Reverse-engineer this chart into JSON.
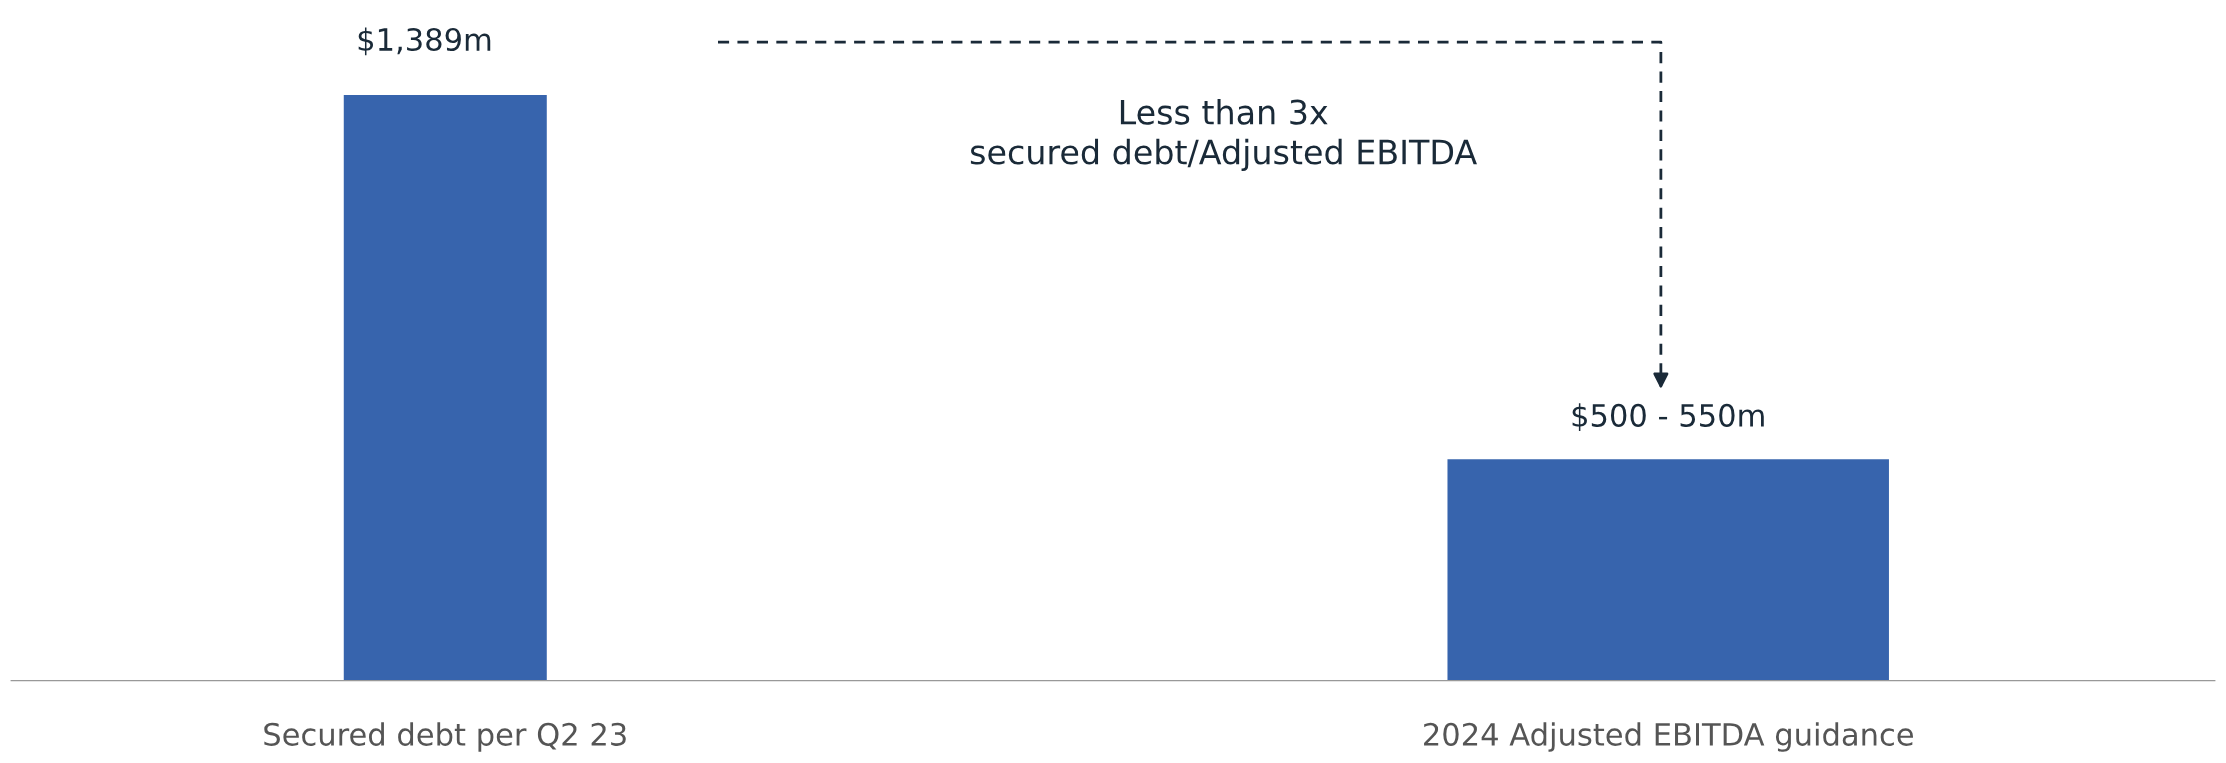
{
  "chart_data": {
    "type": "bar",
    "categories": [
      "Secured debt per Q2 23",
      "2024 Adjusted EBITDA guidance"
    ],
    "values": [
      1389,
      525
    ],
    "colors": [
      "#3764ad",
      "#3764ad"
    ],
    "value_labels": [
      "$1,389m",
      null
    ],
    "annotations": [
      "Less than 3x\nsecured debt/Adjusted EBITDA",
      "$500 - 550m"
    ],
    "grid": false,
    "legend": false
  }
}
